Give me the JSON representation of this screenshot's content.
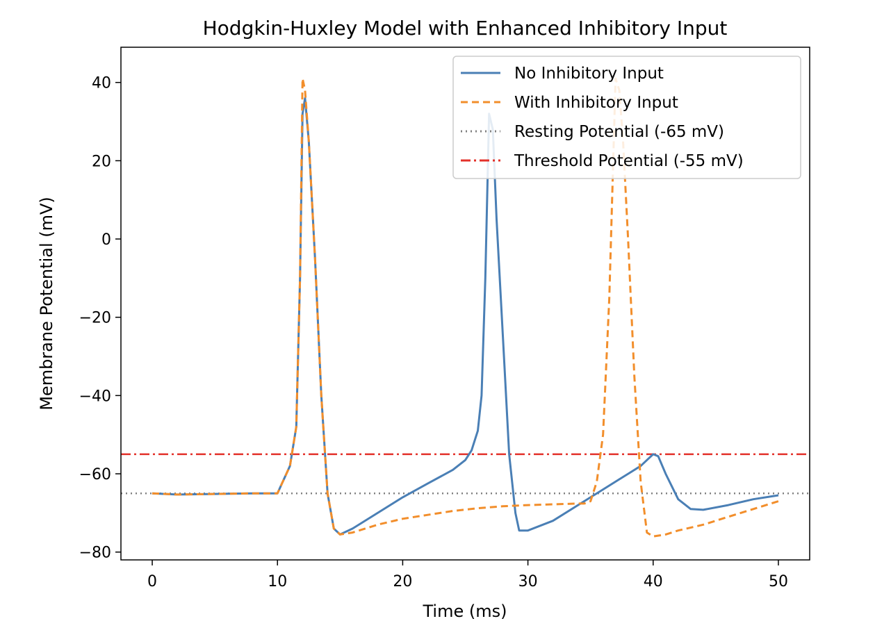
{
  "chart_data": {
    "type": "line",
    "title": "Hodgkin-Huxley Model with Enhanced Inhibitory Input",
    "xlabel": "Time (ms)",
    "ylabel": "Membrane Potential (mV)",
    "xlim": [
      -2.5,
      52.5
    ],
    "ylim": [
      -82,
      49
    ],
    "xticks": [
      0,
      10,
      20,
      30,
      40,
      50
    ],
    "yticks": [
      -80,
      -60,
      -40,
      -20,
      0,
      20,
      40
    ],
    "grid": false,
    "legend_position": "top-right",
    "legend": [
      {
        "label": "No Inhibitory Input",
        "color": "#4a7fb5",
        "style": "solid"
      },
      {
        "label": "With Inhibitory Input",
        "color": "#f28e2b",
        "style": "dashed"
      },
      {
        "label": "Resting Potential (-65 mV)",
        "color": "#808080",
        "style": "dotted"
      },
      {
        "label": "Threshold Potential (-55 mV)",
        "color": "#e3312a",
        "style": "dashdot"
      }
    ],
    "reference_lines": [
      {
        "y": -65,
        "color": "#808080",
        "style": "dotted"
      },
      {
        "y": -55,
        "color": "#e3312a",
        "style": "dashdot"
      }
    ],
    "series": [
      {
        "name": "No Inhibitory Input",
        "color": "#4a7fb5",
        "style": "solid",
        "x": [
          0,
          2,
          4,
          6,
          8,
          10,
          11,
          11.5,
          11.8,
          12.0,
          12.2,
          12.5,
          13.0,
          13.5,
          14.0,
          14.5,
          15.0,
          16,
          18,
          20,
          22,
          24,
          25,
          25.5,
          26,
          26.3,
          26.6,
          26.9,
          27.2,
          27.5,
          28.0,
          28.5,
          29.0,
          29.3,
          30,
          32,
          34,
          36,
          38,
          39,
          39.5,
          40,
          40.4,
          41,
          42,
          43,
          44,
          46,
          48,
          50
        ],
        "y": [
          -65,
          -65.3,
          -65.2,
          -65.1,
          -65.0,
          -65.0,
          -58,
          -48,
          -10,
          32,
          36,
          25,
          -5,
          -40,
          -65,
          -74,
          -75.5,
          -74,
          -70,
          -66,
          -62.5,
          -59,
          -56.5,
          -54,
          -49,
          -40,
          -10,
          32,
          28,
          5,
          -25,
          -55,
          -70,
          -74.5,
          -74.5,
          -72,
          -68,
          -64,
          -60,
          -58,
          -56.5,
          -55,
          -55.5,
          -60,
          -66.5,
          -69,
          -69.2,
          -68,
          -66.5,
          -65.5
        ]
      },
      {
        "name": "With Inhibitory Input",
        "color": "#f28e2b",
        "style": "dashed",
        "x": [
          0,
          2,
          4,
          6,
          8,
          10,
          11,
          11.5,
          11.8,
          12.0,
          12.2,
          12.5,
          13.0,
          13.5,
          14.0,
          14.5,
          15.0,
          16,
          18,
          20,
          22,
          24,
          26,
          28,
          30,
          32,
          34,
          34.5,
          35,
          35.5,
          36,
          36.5,
          37.0,
          37.3,
          37.6,
          38,
          38.5,
          39,
          39.5,
          40,
          41,
          42,
          44,
          46,
          48,
          50
        ],
        "y": [
          -65,
          -65.3,
          -65.2,
          -65.1,
          -65.0,
          -65.0,
          -58,
          -48,
          -10,
          41,
          38,
          25,
          -5,
          -40,
          -65,
          -74,
          -75.5,
          -75,
          -73,
          -71.5,
          -70.5,
          -69.5,
          -68.8,
          -68.3,
          -68,
          -67.8,
          -67.6,
          -67.6,
          -67,
          -62,
          -50,
          -15,
          41,
          38,
          25,
          0,
          -35,
          -62,
          -75,
          -76,
          -75.5,
          -74.5,
          -73,
          -71,
          -69,
          -67
        ]
      }
    ]
  }
}
